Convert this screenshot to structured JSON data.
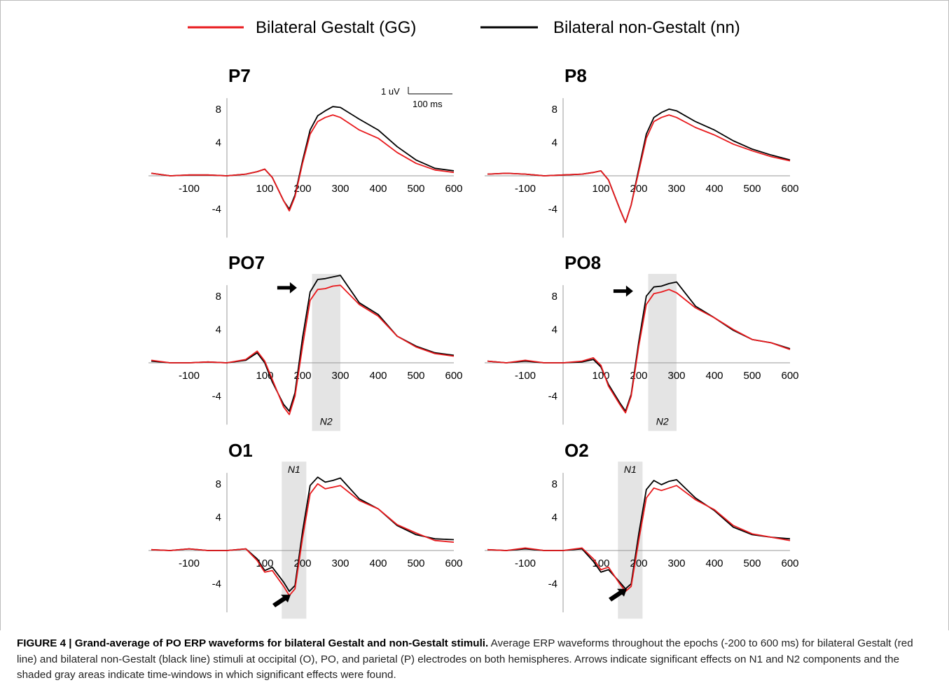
{
  "legend": [
    {
      "label": "Bilateral Gestalt (GG)",
      "color": "#e8191c"
    },
    {
      "label": "Bilateral non-Gestalt (nn)",
      "color": "#000000"
    }
  ],
  "scale_bar": {
    "amplitude_label": "1 uV",
    "time_label": "100 ms",
    "amplitude": 1,
    "time": 100
  },
  "caption": {
    "title": "FIGURE 4 | Grand-average of PO ERP waveforms for bilateral Gestalt and non-Gestalt stimuli.",
    "text": "Average ERP waveforms throughout the epochs (-200 to 600 ms) for bilateral Gestalt (red line) and bilateral non-Gestalt (black line) stimuli at occipital (O), PO, and parietal (P) electrodes on both hemispheres. Arrows indicate significant effects on N1 and N2 components and the shaded gray areas indicate time-windows in which significant effects were found."
  },
  "chart_data": [
    {
      "type": "line",
      "title": "P7",
      "x_ticks": [
        "-100",
        "100",
        "200",
        "300",
        "400",
        "500",
        "600"
      ],
      "y_ticks": [
        "8",
        "4",
        "-4"
      ],
      "xlim": [
        -200,
        600
      ],
      "ylim": [
        -7,
        11
      ],
      "windows": [],
      "arrows": [],
      "series": [
        {
          "name": "Bilateral Gestalt (GG)",
          "color": "#e8191c",
          "x": [
            -200,
            -150,
            -100,
            -50,
            0,
            50,
            80,
            100,
            120,
            150,
            165,
            180,
            200,
            220,
            240,
            260,
            280,
            300,
            350,
            400,
            450,
            500,
            550,
            600
          ],
          "y": [
            0.3,
            0,
            0.1,
            0.1,
            0,
            0.2,
            0.5,
            0.8,
            -0.2,
            -3,
            -4.2,
            -2.5,
            1.5,
            5,
            6.5,
            7,
            7.3,
            7,
            5.5,
            4.5,
            2.8,
            1.5,
            0.7,
            0.4
          ]
        },
        {
          "name": "Bilateral non-Gestalt (nn)",
          "color": "#000000",
          "x": [
            -200,
            -150,
            -100,
            -50,
            0,
            50,
            80,
            100,
            120,
            150,
            165,
            180,
            200,
            220,
            240,
            260,
            280,
            300,
            350,
            400,
            450,
            500,
            550,
            600
          ],
          "y": [
            0.3,
            0,
            0.1,
            0.1,
            0,
            0.2,
            0.5,
            0.8,
            -0.2,
            -3,
            -4,
            -2.3,
            1.8,
            5.5,
            7.2,
            7.8,
            8.3,
            8.2,
            6.8,
            5.5,
            3.5,
            1.9,
            0.9,
            0.6
          ]
        }
      ]
    },
    {
      "type": "line",
      "title": "P8",
      "x_ticks": [
        "-100",
        "100",
        "200",
        "300",
        "400",
        "500",
        "600"
      ],
      "y_ticks": [
        "8",
        "4",
        "-4"
      ],
      "xlim": [
        -200,
        600
      ],
      "ylim": [
        -7,
        11
      ],
      "windows": [],
      "arrows": [],
      "series": [
        {
          "name": "Bilateral Gestalt (GG)",
          "color": "#e8191c",
          "x": [
            -200,
            -150,
            -100,
            -50,
            0,
            50,
            80,
            100,
            120,
            150,
            165,
            180,
            200,
            220,
            240,
            260,
            280,
            300,
            350,
            400,
            450,
            500,
            550,
            600
          ],
          "y": [
            0.2,
            0.3,
            0.2,
            0,
            0.1,
            0.2,
            0.4,
            0.6,
            -0.5,
            -4,
            -5.6,
            -3.5,
            0.5,
            4.5,
            6.5,
            7,
            7.3,
            7,
            5.8,
            4.9,
            3.8,
            3,
            2.3,
            1.8
          ]
        },
        {
          "name": "Bilateral non-Gestalt (nn)",
          "color": "#000000",
          "x": [
            -200,
            -150,
            -100,
            -50,
            0,
            50,
            80,
            100,
            120,
            150,
            165,
            180,
            200,
            220,
            240,
            260,
            280,
            300,
            350,
            400,
            450,
            500,
            550,
            600
          ],
          "y": [
            0.2,
            0.3,
            0.2,
            0,
            0.1,
            0.2,
            0.4,
            0.6,
            -0.5,
            -4,
            -5.6,
            -3.5,
            0.8,
            5,
            7,
            7.6,
            8,
            7.8,
            6.5,
            5.5,
            4.2,
            3.2,
            2.5,
            1.9
          ]
        }
      ]
    },
    {
      "type": "line",
      "title": "PO7",
      "x_ticks": [
        "-100",
        "100",
        "200",
        "300",
        "400",
        "500",
        "600"
      ],
      "y_ticks": [
        "8",
        "4",
        "-4"
      ],
      "xlim": [
        -200,
        600
      ],
      "ylim": [
        -7,
        11
      ],
      "windows": [
        {
          "start": 225,
          "end": 300,
          "label": "N2"
        }
      ],
      "arrows": [
        {
          "x": 185,
          "y": 9,
          "direction": "right"
        }
      ],
      "series": [
        {
          "name": "Bilateral Gestalt (GG)",
          "color": "#e8191c",
          "x": [
            -200,
            -150,
            -100,
            -50,
            0,
            50,
            80,
            100,
            120,
            150,
            165,
            180,
            200,
            220,
            240,
            260,
            280,
            300,
            350,
            400,
            450,
            500,
            550,
            600
          ],
          "y": [
            0.3,
            0,
            0,
            0.1,
            0,
            0.4,
            1.4,
            0.2,
            -2,
            -5.3,
            -6.2,
            -4,
            2,
            7.5,
            8.8,
            8.9,
            9.2,
            9.3,
            7,
            5.6,
            3.2,
            1.9,
            1.1,
            0.8
          ]
        },
        {
          "name": "Bilateral non-Gestalt (nn)",
          "color": "#000000",
          "x": [
            -200,
            -150,
            -100,
            -50,
            0,
            50,
            80,
            100,
            120,
            150,
            165,
            180,
            200,
            220,
            240,
            260,
            280,
            300,
            350,
            400,
            450,
            500,
            550,
            600
          ],
          "y": [
            0.2,
            0,
            0,
            0.1,
            0,
            0.3,
            1.2,
            0,
            -2.3,
            -5,
            -5.8,
            -3.6,
            3,
            8.5,
            10,
            10.1,
            10.3,
            10.5,
            7.2,
            5.8,
            3.2,
            2,
            1.2,
            0.9
          ]
        }
      ]
    },
    {
      "type": "line",
      "title": "PO8",
      "x_ticks": [
        "-100",
        "100",
        "200",
        "300",
        "400",
        "500",
        "600"
      ],
      "y_ticks": [
        "8",
        "4",
        "-4"
      ],
      "xlim": [
        -200,
        600
      ],
      "ylim": [
        -7,
        11
      ],
      "windows": [
        {
          "start": 225,
          "end": 300,
          "label": "N2"
        }
      ],
      "arrows": [
        {
          "x": 185,
          "y": 8.6,
          "direction": "right"
        }
      ],
      "series": [
        {
          "name": "Bilateral Gestalt (GG)",
          "color": "#e8191c",
          "x": [
            -200,
            -150,
            -100,
            -50,
            0,
            50,
            80,
            100,
            120,
            150,
            165,
            180,
            200,
            220,
            240,
            260,
            280,
            300,
            350,
            400,
            450,
            500,
            550,
            600
          ],
          "y": [
            0.2,
            0,
            0.3,
            0,
            0,
            0.2,
            0.6,
            -0.3,
            -2.8,
            -5,
            -6,
            -4,
            2,
            7,
            8.3,
            8.5,
            8.8,
            8.4,
            6.6,
            5.4,
            4,
            2.8,
            2.4,
            1.6
          ]
        },
        {
          "name": "Bilateral non-Gestalt (nn)",
          "color": "#000000",
          "x": [
            -200,
            -150,
            -100,
            -50,
            0,
            50,
            80,
            100,
            120,
            150,
            165,
            180,
            200,
            220,
            240,
            260,
            280,
            300,
            350,
            400,
            450,
            500,
            550,
            600
          ],
          "y": [
            0.2,
            0,
            0.2,
            0,
            0,
            0.1,
            0.4,
            -0.5,
            -2.6,
            -4.8,
            -5.8,
            -3.8,
            2.5,
            8,
            9.1,
            9.2,
            9.5,
            9.7,
            6.8,
            5.4,
            3.9,
            2.8,
            2.4,
            1.7
          ]
        }
      ]
    },
    {
      "type": "line",
      "title": "O1",
      "x_ticks": [
        "-100",
        "100",
        "200",
        "300",
        "400",
        "500",
        "600"
      ],
      "y_ticks": [
        "8",
        "4",
        "-4"
      ],
      "xlim": [
        -200,
        600
      ],
      "ylim": [
        -7,
        11
      ],
      "windows": [
        {
          "start": 145,
          "end": 210,
          "label": "N1"
        }
      ],
      "arrows": [
        {
          "x": 150,
          "y": -5.3,
          "direction": "up-right"
        }
      ],
      "series": [
        {
          "name": "Bilateral Gestalt (GG)",
          "color": "#e8191c",
          "x": [
            -200,
            -150,
            -100,
            -50,
            0,
            50,
            80,
            100,
            120,
            150,
            165,
            180,
            200,
            220,
            240,
            260,
            280,
            300,
            350,
            400,
            450,
            500,
            550,
            600
          ],
          "y": [
            0.1,
            0,
            0.2,
            0,
            0,
            0.2,
            -1.2,
            -2.6,
            -2.4,
            -4.3,
            -5.4,
            -4.6,
            1.5,
            6.8,
            8,
            7.4,
            7.6,
            7.8,
            6,
            5,
            3.1,
            2.1,
            1.2,
            1
          ]
        },
        {
          "name": "Bilateral non-Gestalt (nn)",
          "color": "#000000",
          "x": [
            -200,
            -150,
            -100,
            -50,
            0,
            50,
            80,
            100,
            120,
            150,
            165,
            180,
            200,
            220,
            240,
            260,
            280,
            300,
            350,
            400,
            450,
            500,
            550,
            600
          ],
          "y": [
            0.1,
            0,
            0.2,
            0,
            0,
            0.2,
            -1,
            -2.4,
            -2,
            -3.8,
            -4.9,
            -4.2,
            2.3,
            7.8,
            8.8,
            8.2,
            8.4,
            8.7,
            6.2,
            5,
            3,
            1.9,
            1.4,
            1.3
          ]
        }
      ]
    },
    {
      "type": "line",
      "title": "O2",
      "x_ticks": [
        "-100",
        "100",
        "200",
        "300",
        "400",
        "500",
        "600"
      ],
      "y_ticks": [
        "8",
        "4",
        "-4"
      ],
      "xlim": [
        -200,
        600
      ],
      "ylim": [
        -7,
        11
      ],
      "windows": [
        {
          "start": 145,
          "end": 210,
          "label": "N1"
        }
      ],
      "arrows": [
        {
          "x": 150,
          "y": -4.6,
          "direction": "up-right"
        }
      ],
      "series": [
        {
          "name": "Bilateral Gestalt (GG)",
          "color": "#e8191c",
          "x": [
            -200,
            -150,
            -100,
            -50,
            0,
            50,
            80,
            100,
            120,
            150,
            165,
            180,
            200,
            220,
            240,
            260,
            280,
            300,
            350,
            400,
            450,
            500,
            550,
            600
          ],
          "y": [
            0.1,
            0,
            0.3,
            0,
            0,
            0.3,
            -1,
            -2.3,
            -2,
            -4,
            -4.9,
            -4.3,
            1.2,
            6.3,
            7.5,
            7.2,
            7.5,
            7.8,
            6.1,
            4.9,
            3,
            2,
            1.6,
            1.2
          ]
        },
        {
          "name": "Bilateral non-Gestalt (nn)",
          "color": "#000000",
          "x": [
            -200,
            -150,
            -100,
            -50,
            0,
            50,
            80,
            100,
            120,
            150,
            165,
            180,
            200,
            220,
            240,
            260,
            280,
            300,
            350,
            400,
            450,
            500,
            550,
            600
          ],
          "y": [
            0.1,
            0,
            0.2,
            0,
            0,
            0.2,
            -1.3,
            -2.6,
            -2.3,
            -3.8,
            -4.6,
            -4,
            2,
            7.3,
            8.4,
            7.9,
            8.3,
            8.5,
            6.3,
            4.8,
            2.8,
            1.9,
            1.6,
            1.4
          ]
        }
      ]
    }
  ]
}
